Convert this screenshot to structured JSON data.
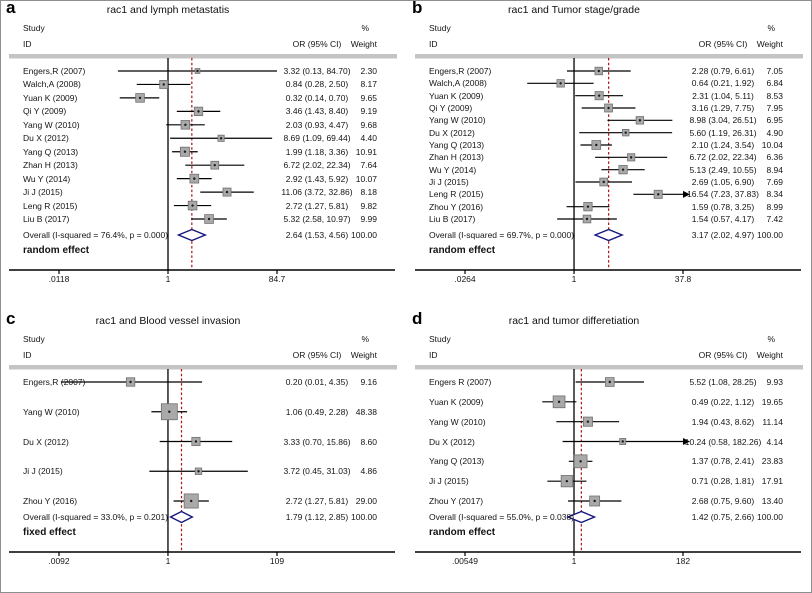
{
  "figure": {
    "background": "#ffffff",
    "band_color": "#c4c4c4",
    "marker_fill": "#a9a9a9",
    "marker_border": "#707070",
    "overall_line_color": "#b01212",
    "diamond_stroke": "#16167f"
  },
  "chart_data": [
    {
      "type": "forest",
      "panel_label": "a",
      "title": "rac1 and lymph metastatis",
      "headers": {
        "percent": "%",
        "study": "Study",
        "id": "ID",
        "or": "OR (95% CI)",
        "weight": "Weight"
      },
      "axis": {
        "min": 0.0118,
        "max": 84.7,
        "ticks": [
          {
            "label": ".0118",
            "value": 0.0118
          },
          {
            "label": "1",
            "value": 1
          },
          {
            "label": "84.7",
            "value": 84.7
          }
        ]
      },
      "null_value": 1,
      "studies": [
        {
          "id": "Engers,R (2007)",
          "or": 3.32,
          "lo": 0.13,
          "hi": 84.7,
          "or_text": "3.32 (0.13, 84.70)",
          "weight": "2.30"
        },
        {
          "id": "Walch,A (2008)",
          "or": 0.84,
          "lo": 0.28,
          "hi": 2.5,
          "or_text": "0.84 (0.28, 2.50)",
          "weight": "8.17"
        },
        {
          "id": "Yuan K (2009)",
          "or": 0.32,
          "lo": 0.14,
          "hi": 0.7,
          "or_text": "0.32 (0.14, 0.70)",
          "weight": "9.65"
        },
        {
          "id": "Qi Y (2009)",
          "or": 3.46,
          "lo": 1.43,
          "hi": 8.4,
          "or_text": "3.46 (1.43, 8.40)",
          "weight": "9.19"
        },
        {
          "id": "Yang W (2010)",
          "or": 2.03,
          "lo": 0.93,
          "hi": 4.47,
          "or_text": "2.03 (0.93, 4.47)",
          "weight": "9.68"
        },
        {
          "id": "Du X (2012)",
          "or": 8.69,
          "lo": 1.09,
          "hi": 69.44,
          "or_text": "8.69 (1.09, 69.44)",
          "weight": "4.40"
        },
        {
          "id": "Yang Q (2013)",
          "or": 1.99,
          "lo": 1.18,
          "hi": 3.36,
          "or_text": "1.99 (1.18, 3.36)",
          "weight": "10.91"
        },
        {
          "id": "Zhan H (2013)",
          "or": 6.72,
          "lo": 2.02,
          "hi": 22.34,
          "or_text": "6.72 (2.02, 22.34)",
          "weight": "7.64"
        },
        {
          "id": "Wu Y (2014)",
          "or": 2.92,
          "lo": 1.43,
          "hi": 5.92,
          "or_text": "2.92 (1.43, 5.92)",
          "weight": "10.07"
        },
        {
          "id": "Ji J (2015)",
          "or": 11.06,
          "lo": 3.72,
          "hi": 32.86,
          "or_text": "11.06 (3.72, 32.86)",
          "weight": "8.18"
        },
        {
          "id": "Leng R (2015)",
          "or": 2.72,
          "lo": 1.27,
          "hi": 5.81,
          "or_text": "2.72 (1.27, 5.81)",
          "weight": "9.82"
        },
        {
          "id": "Liu B (2017)",
          "or": 5.32,
          "lo": 2.58,
          "hi": 10.97,
          "or_text": "5.32 (2.58, 10.97)",
          "weight": "9.99"
        }
      ],
      "overall": {
        "label": "Overall  (I-squared = 76.4%, p = 0.000)",
        "or": 2.64,
        "lo": 1.53,
        "hi": 4.56,
        "or_text": "2.64 (1.53, 4.56)",
        "weight": "100.00"
      },
      "effect_label": "random effect"
    },
    {
      "type": "forest",
      "panel_label": "b",
      "title": "rac1  and Tumor stage/grade",
      "headers": {
        "percent": "%",
        "study": "Study",
        "id": "ID",
        "or": "OR (95% CI)",
        "weight": "Weight"
      },
      "axis": {
        "min": 0.0264,
        "max": 37.8,
        "ticks": [
          {
            "label": ".0264",
            "value": 0.0264
          },
          {
            "label": "1",
            "value": 1
          },
          {
            "label": "37.8",
            "value": 37.8
          }
        ]
      },
      "null_value": 1,
      "studies": [
        {
          "id": "Engers,R (2007)",
          "or": 2.28,
          "lo": 0.79,
          "hi": 6.61,
          "or_text": "2.28 (0.79, 6.61)",
          "weight": "7.05"
        },
        {
          "id": "Walch,A (2008)",
          "or": 0.64,
          "lo": 0.21,
          "hi": 1.92,
          "or_text": "0.64 (0.21, 1.92)",
          "weight": "6.84"
        },
        {
          "id": "Yuan K (2009)",
          "or": 2.31,
          "lo": 1.04,
          "hi": 5.11,
          "or_text": "2.31 (1.04, 5.11)",
          "weight": "8.53"
        },
        {
          "id": "Qi Y (2009)",
          "or": 3.16,
          "lo": 1.29,
          "hi": 7.75,
          "or_text": "3.16 (1.29, 7.75)",
          "weight": "7.95"
        },
        {
          "id": "Yang W (2010)",
          "or": 8.98,
          "lo": 3.04,
          "hi": 26.51,
          "or_text": "8.98 (3.04, 26.51)",
          "weight": "6.95"
        },
        {
          "id": "Du X (2012)",
          "or": 5.6,
          "lo": 1.19,
          "hi": 26.31,
          "or_text": "5.60 (1.19, 26.31)",
          "weight": "4.90"
        },
        {
          "id": "Yang Q (2013)",
          "or": 2.1,
          "lo": 1.24,
          "hi": 3.54,
          "or_text": "2.10 (1.24, 3.54)",
          "weight": "10.04"
        },
        {
          "id": "Zhan H (2013)",
          "or": 6.72,
          "lo": 2.02,
          "hi": 22.34,
          "or_text": "6.72 (2.02, 22.34)",
          "weight": "6.36"
        },
        {
          "id": "Wu Y (2014)",
          "or": 5.13,
          "lo": 2.49,
          "hi": 10.55,
          "or_text": "5.13 (2.49, 10.55)",
          "weight": "8.94"
        },
        {
          "id": "Ji J (2015)",
          "or": 2.69,
          "lo": 1.05,
          "hi": 6.9,
          "or_text": "2.69 (1.05, 6.90)",
          "weight": "7.69"
        },
        {
          "id": "Leng R (2015)",
          "or": 16.54,
          "lo": 7.23,
          "hi": 37.83,
          "or_text": "16.54 (7.23, 37.83)",
          "weight": "8.34"
        },
        {
          "id": "Zhou Y (2016)",
          "or": 1.59,
          "lo": 0.78,
          "hi": 3.25,
          "or_text": "1.59 (0.78, 3.25)",
          "weight": "8.99"
        },
        {
          "id": "Liu B (2017)",
          "or": 1.54,
          "lo": 0.57,
          "hi": 4.17,
          "or_text": "1.54 (0.57, 4.17)",
          "weight": "7.42"
        }
      ],
      "overall": {
        "label": "Overall  (I-squared = 69.7%, p = 0.000)",
        "or": 3.17,
        "lo": 2.02,
        "hi": 4.97,
        "or_text": "3.17 (2.02, 4.97)",
        "weight": "100.00"
      },
      "effect_label": "random effect"
    },
    {
      "type": "forest",
      "panel_label": "c",
      "title": "rac1 and Blood vessel invasion",
      "headers": {
        "percent": "%",
        "study": "Study",
        "id": "ID",
        "or": "OR (95% CI)",
        "weight": "Weight"
      },
      "axis": {
        "min": 0.0092,
        "max": 109,
        "ticks": [
          {
            "label": ".0092",
            "value": 0.0092
          },
          {
            "label": "1",
            "value": 1
          },
          {
            "label": "109",
            "value": 109
          }
        ]
      },
      "null_value": 1,
      "studies": [
        {
          "id": "Engers,R (2007)",
          "or": 0.2,
          "lo": 0.01,
          "hi": 4.35,
          "or_text": "0.20 (0.01, 4.35)",
          "weight": "9.16"
        },
        {
          "id": "Yang W (2010)",
          "or": 1.06,
          "lo": 0.49,
          "hi": 2.28,
          "or_text": "1.06 (0.49, 2.28)",
          "weight": "48.38"
        },
        {
          "id": "Du X (2012)",
          "or": 3.33,
          "lo": 0.7,
          "hi": 15.86,
          "or_text": "3.33 (0.70, 15.86)",
          "weight": "8.60"
        },
        {
          "id": "Ji J (2015)",
          "or": 3.72,
          "lo": 0.45,
          "hi": 31.03,
          "or_text": "3.72 (0.45, 31.03)",
          "weight": "4.86"
        },
        {
          "id": "Zhou Y (2016)",
          "or": 2.72,
          "lo": 1.27,
          "hi": 5.81,
          "or_text": "2.72 (1.27, 5.81)",
          "weight": "29.00"
        }
      ],
      "overall": {
        "label": "Overall  (I-squared = 33.0%, p = 0.201)",
        "or": 1.79,
        "lo": 1.12,
        "hi": 2.85,
        "or_text": "1.79 (1.12, 2.85)",
        "weight": "100.00"
      },
      "effect_label": "fixed effect"
    },
    {
      "type": "forest",
      "panel_label": "d",
      "title": "rac1 and tumor differetiation",
      "headers": {
        "percent": "%",
        "study": "Study",
        "id": "ID",
        "or": "OR (95% CI)",
        "weight": "Weight"
      },
      "axis": {
        "min": 0.00549,
        "max": 182,
        "ticks": [
          {
            "label": ".00549",
            "value": 0.00549
          },
          {
            "label": "1",
            "value": 1
          },
          {
            "label": "182",
            "value": 182
          }
        ]
      },
      "null_value": 1,
      "studies": [
        {
          "id": "Engers R (2007)",
          "or": 5.52,
          "lo": 1.08,
          "hi": 28.25,
          "or_text": "5.52 (1.08, 28.25)",
          "weight": "9.93"
        },
        {
          "id": "Yuan K (2009)",
          "or": 0.49,
          "lo": 0.22,
          "hi": 1.12,
          "or_text": "0.49 (0.22, 1.12)",
          "weight": "19.65"
        },
        {
          "id": "Yang W (2010)",
          "or": 1.94,
          "lo": 0.43,
          "hi": 8.62,
          "or_text": "1.94 (0.43, 8.62)",
          "weight": "11.14"
        },
        {
          "id": "Du X (2012)",
          "or": 10.24,
          "lo": 0.58,
          "hi": 182.26,
          "or_text": "10.24 (0.58, 182.26)",
          "weight": "4.14"
        },
        {
          "id": "Yang Q (2013)",
          "or": 1.37,
          "lo": 0.78,
          "hi": 2.41,
          "or_text": "1.37 (0.78, 2.41)",
          "weight": "23.83"
        },
        {
          "id": "Ji J (2015)",
          "or": 0.71,
          "lo": 0.28,
          "hi": 1.81,
          "or_text": "0.71 (0.28, 1.81)",
          "weight": "17.91"
        },
        {
          "id": "Zhou Y (2017)",
          "or": 2.68,
          "lo": 0.75,
          "hi": 9.6,
          "or_text": "2.68 (0.75, 9.60)",
          "weight": "13.40"
        }
      ],
      "overall": {
        "label": "Overall  (I-squared = 55.0%, p = 0.038)",
        "or": 1.42,
        "lo": 0.75,
        "hi": 2.66,
        "or_text": "1.42 (0.75, 2.66)",
        "weight": "100.00"
      },
      "effect_label": "random effect"
    }
  ]
}
